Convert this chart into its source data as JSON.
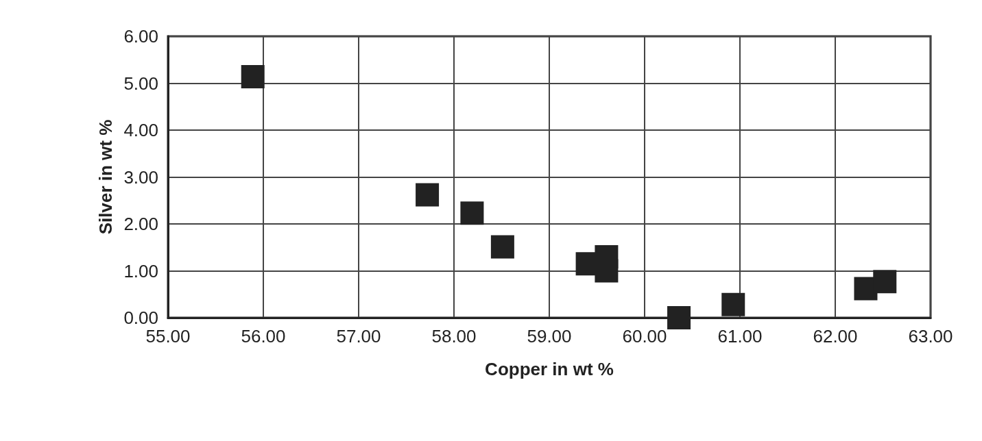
{
  "chart_data": {
    "type": "scatter",
    "xlabel": "Copper in wt %",
    "ylabel": "Silver in wt %",
    "x": [
      55.89,
      57.72,
      58.19,
      58.51,
      59.4,
      59.6,
      59.6,
      60.36,
      60.93,
      62.32,
      62.52
    ],
    "values": [
      5.14,
      2.62,
      2.23,
      1.51,
      1.15,
      1.3,
      1.0,
      0.0,
      0.28,
      0.62,
      0.77
    ],
    "color": "#222222",
    "marker": "square",
    "grid": true,
    "xlim": [
      55,
      63
    ],
    "xticks": [
      {
        "value": 55,
        "label": "55.00"
      },
      {
        "value": 56,
        "label": "56.00"
      },
      {
        "value": 57,
        "label": "57.00"
      },
      {
        "value": 58,
        "label": "58.00"
      },
      {
        "value": 59,
        "label": "59.00"
      },
      {
        "value": 60,
        "label": "60.00"
      },
      {
        "value": 61,
        "label": "61.00"
      },
      {
        "value": 62,
        "label": "62.00"
      },
      {
        "value": 63,
        "label": "63.00"
      }
    ],
    "ylim": [
      0,
      6
    ],
    "yticks": [
      {
        "value": 0,
        "label": "0.00"
      },
      {
        "value": 1,
        "label": "1.00"
      },
      {
        "value": 2,
        "label": "2.00"
      },
      {
        "value": 3,
        "label": "3.00"
      },
      {
        "value": 4,
        "label": "4.00"
      },
      {
        "value": 5,
        "label": "5.00"
      },
      {
        "value": 6,
        "label": "6.00"
      }
    ]
  }
}
